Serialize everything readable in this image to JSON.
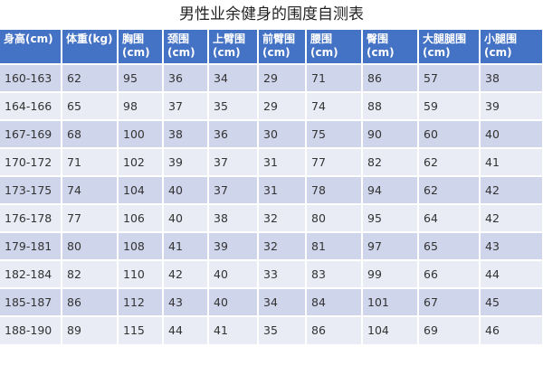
{
  "title": "男性业余健身的围度自测表",
  "colors": {
    "header": "#4472c4",
    "row_odd": "#cfd5ea",
    "row_even": "#e9ebf5"
  },
  "headers": [
    "身高(cm)",
    "体重(kg)",
    "胸围\n(cm)",
    "颈围\n(cm)",
    "上臂围\n(cm)",
    "前臂围\n(cm)",
    "腰围\n(cm)",
    "臀围\n(cm)",
    "大腿腿围\n(cm)",
    "小腿围\n(cm)"
  ],
  "rows": [
    [
      "160-163",
      "62",
      "95",
      "36",
      "34",
      "29",
      "71",
      "86",
      "57",
      "38"
    ],
    [
      "164-166",
      "65",
      "98",
      "37",
      "35",
      "29",
      "74",
      "88",
      "59",
      "39"
    ],
    [
      "167-169",
      "68",
      "100",
      "38",
      "36",
      "30",
      "75",
      "90",
      "60",
      "40"
    ],
    [
      "170-172",
      "71",
      "102",
      "39",
      "37",
      "31",
      "77",
      "82",
      "62",
      "41"
    ],
    [
      "173-175",
      "74",
      "104",
      "40",
      "37",
      "31",
      "78",
      "94",
      "62",
      "42"
    ],
    [
      "176-178",
      "77",
      "106",
      "40",
      "38",
      "32",
      "80",
      "95",
      "64",
      "42"
    ],
    [
      "179-181",
      "80",
      "108",
      "41",
      "39",
      "32",
      "81",
      "97",
      "65",
      "43"
    ],
    [
      "182-184",
      "82",
      "110",
      "42",
      "40",
      "33",
      "83",
      "99",
      "66",
      "44"
    ],
    [
      "185-187",
      "86",
      "112",
      "43",
      "40",
      "34",
      "84",
      "101",
      "67",
      "45"
    ],
    [
      "188-190",
      "89",
      "115",
      "44",
      "41",
      "35",
      "86",
      "104",
      "69",
      "46"
    ]
  ]
}
